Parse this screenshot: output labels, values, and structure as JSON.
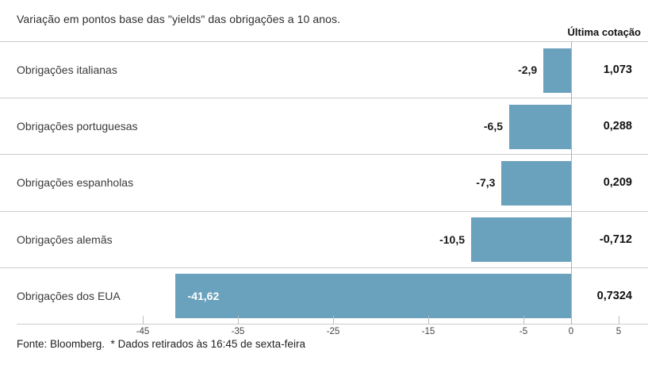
{
  "title": "Variação em pontos base das \"yields\" das obrigações a 10 anos.",
  "quote_header": "Última cotação",
  "footer": "Fonte: Bloomberg.  * Dados retirados às 16:45 de sexta-feira",
  "colors": {
    "bar": "#6AA1BC",
    "separator": "#CCCCCC",
    "zero_line": "#B0B0B0",
    "inside_bar_label": "#FFFFFF"
  },
  "chart_data": {
    "type": "bar",
    "orientation": "horizontal",
    "title": "Variação em pontos base das \"yields\" das obrigações a 10 anos.",
    "categories": [
      "Obrigações italianas",
      "Obrigações portuguesas",
      "Obrigações espanholas",
      "Obrigações alemãs",
      "Obrigações dos EUA"
    ],
    "values": [
      -2.9,
      -6.5,
      -7.3,
      -10.5,
      -41.62
    ],
    "value_labels": [
      "-2,9",
      "-6,5",
      "-7,3",
      "-10,5",
      "-41,62"
    ],
    "quote_column": {
      "header": "Última cotação",
      "values": [
        "1,073",
        "0,288",
        "0,209",
        "-0,712",
        "0,7324"
      ]
    },
    "x_ticks": [
      -45,
      -35,
      -25,
      -15,
      -5,
      0,
      5
    ],
    "x_tick_labels": [
      "-45",
      "-35",
      "-25",
      "-15",
      "-5",
      "0",
      "5"
    ],
    "xlim": [
      -50,
      8
    ],
    "grid": false,
    "source": "Fonte: Bloomberg.",
    "note": "* Dados retirados às 16:45 de sexta-feira"
  }
}
